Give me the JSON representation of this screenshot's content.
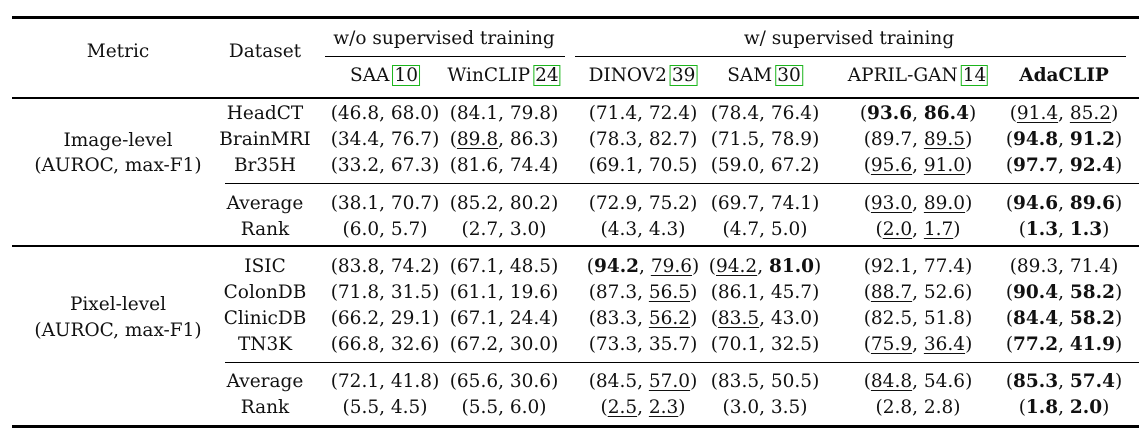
{
  "header": {
    "metric": "Metric",
    "dataset": "Dataset",
    "group_wo": "w/o supervised training",
    "group_w": "w/ supervised training",
    "methods": [
      {
        "name": "SAA",
        "ref": "10"
      },
      {
        "name": "WinCLIP",
        "ref": "24"
      },
      {
        "name": "DINOV2",
        "ref": "39"
      },
      {
        "name": "SAM",
        "ref": "30"
      },
      {
        "name": "APRIL-GAN",
        "ref": "14"
      },
      {
        "name": "AdaCLIP",
        "ref": ""
      }
    ]
  },
  "sections": [
    {
      "label_line1": "Image-level",
      "label_line2": "(AUROC, max-F1)",
      "rows": [
        {
          "dataset": "HeadCT",
          "cells": [
            {
              "a": "46.8",
              "b": "68.0"
            },
            {
              "a": "84.1",
              "b": "79.8"
            },
            {
              "a": "71.4",
              "b": "72.4"
            },
            {
              "a": "78.4",
              "b": "76.4"
            },
            {
              "a": "93.6",
              "b": "86.4",
              "ab": true,
              "bb": true
            },
            {
              "a": "91.4",
              "b": "85.2",
              "au": true,
              "bu": true
            }
          ]
        },
        {
          "dataset": "BrainMRI",
          "cells": [
            {
              "a": "34.4",
              "b": "76.7"
            },
            {
              "a": "89.8",
              "b": "86.3",
              "au": true
            },
            {
              "a": "78.3",
              "b": "82.7"
            },
            {
              "a": "71.5",
              "b": "78.9"
            },
            {
              "a": "89.7",
              "b": "89.5",
              "bu": true
            },
            {
              "a": "94.8",
              "b": "91.2",
              "ab": true,
              "bb": true
            }
          ]
        },
        {
          "dataset": "Br35H",
          "cells": [
            {
              "a": "33.2",
              "b": "67.3"
            },
            {
              "a": "81.6",
              "b": "74.4"
            },
            {
              "a": "69.1",
              "b": "70.5"
            },
            {
              "a": "59.0",
              "b": "67.2"
            },
            {
              "a": "95.6",
              "b": "91.0",
              "au": true,
              "bu": true
            },
            {
              "a": "97.7",
              "b": "92.4",
              "ab": true,
              "bb": true
            }
          ]
        }
      ],
      "summary": [
        {
          "dataset": "Average",
          "cells": [
            {
              "a": "38.1",
              "b": "70.7"
            },
            {
              "a": "85.2",
              "b": "80.2"
            },
            {
              "a": "72.9",
              "b": "75.2"
            },
            {
              "a": "69.7",
              "b": "74.1"
            },
            {
              "a": "93.0",
              "b": "89.0",
              "au": true,
              "bu": true
            },
            {
              "a": "94.6",
              "b": "89.6",
              "ab": true,
              "bb": true
            }
          ]
        },
        {
          "dataset": "Rank",
          "cells": [
            {
              "a": "6.0",
              "b": "5.7"
            },
            {
              "a": "2.7",
              "b": "3.0"
            },
            {
              "a": "4.3",
              "b": "4.3"
            },
            {
              "a": "4.7",
              "b": "5.0"
            },
            {
              "a": "2.0",
              "b": "1.7",
              "au": true,
              "bu": true
            },
            {
              "a": "1.3",
              "b": "1.3",
              "ab": true,
              "bb": true
            }
          ]
        }
      ]
    },
    {
      "label_line1": "Pixel-level",
      "label_line2": "(AUROC, max-F1)",
      "rows": [
        {
          "dataset": "ISIC",
          "cells": [
            {
              "a": "83.8",
              "b": "74.2"
            },
            {
              "a": "67.1",
              "b": "48.5"
            },
            {
              "a": "94.2",
              "b": "79.6",
              "ab": true,
              "bu": true
            },
            {
              "a": "94.2",
              "b": "81.0",
              "au": true,
              "bb": true
            },
            {
              "a": "92.1",
              "b": "77.4"
            },
            {
              "a": "89.3",
              "b": "71.4"
            }
          ]
        },
        {
          "dataset": "ColonDB",
          "cells": [
            {
              "a": "71.8",
              "b": "31.5"
            },
            {
              "a": "61.1",
              "b": "19.6"
            },
            {
              "a": "87.3",
              "b": "56.5",
              "bu": true
            },
            {
              "a": "86.1",
              "b": "45.7"
            },
            {
              "a": "88.7",
              "b": "52.6",
              "au": true
            },
            {
              "a": "90.4",
              "b": "58.2",
              "ab": true,
              "bb": true
            }
          ]
        },
        {
          "dataset": "ClinicDB",
          "cells": [
            {
              "a": "66.2",
              "b": "29.1"
            },
            {
              "a": "67.1",
              "b": "24.4"
            },
            {
              "a": "83.3",
              "b": "56.2",
              "bu": true
            },
            {
              "a": "83.5",
              "b": "43.0",
              "au": true
            },
            {
              "a": "82.5",
              "b": "51.8"
            },
            {
              "a": "84.4",
              "b": "58.2",
              "ab": true,
              "bb": true
            }
          ]
        },
        {
          "dataset": "TN3K",
          "cells": [
            {
              "a": "66.8",
              "b": "32.6"
            },
            {
              "a": "67.2",
              "b": "30.0"
            },
            {
              "a": "73.3",
              "b": "35.7"
            },
            {
              "a": "70.1",
              "b": "32.5"
            },
            {
              "a": "75.9",
              "b": "36.4",
              "au": true,
              "bu": true
            },
            {
              "a": "77.2",
              "b": "41.9",
              "ab": true,
              "bb": true
            }
          ]
        }
      ],
      "summary": [
        {
          "dataset": "Average",
          "cells": [
            {
              "a": "72.1",
              "b": "41.8"
            },
            {
              "a": "65.6",
              "b": "30.6"
            },
            {
              "a": "84.5",
              "b": "57.0",
              "bu": true
            },
            {
              "a": "83.5",
              "b": "50.5"
            },
            {
              "a": "84.8",
              "b": "54.6",
              "au": true
            },
            {
              "a": "85.3",
              "b": "57.4",
              "ab": true,
              "bb": true
            }
          ]
        },
        {
          "dataset": "Rank",
          "cells": [
            {
              "a": "5.5",
              "b": "4.5"
            },
            {
              "a": "5.5",
              "b": "6.0"
            },
            {
              "a": "2.5",
              "b": "2.3",
              "au": true,
              "bu": true
            },
            {
              "a": "3.0",
              "b": "3.5"
            },
            {
              "a": "2.8",
              "b": "2.8"
            },
            {
              "a": "1.8",
              "b": "2.0",
              "ab": true,
              "bb": true
            }
          ]
        }
      ]
    }
  ]
}
